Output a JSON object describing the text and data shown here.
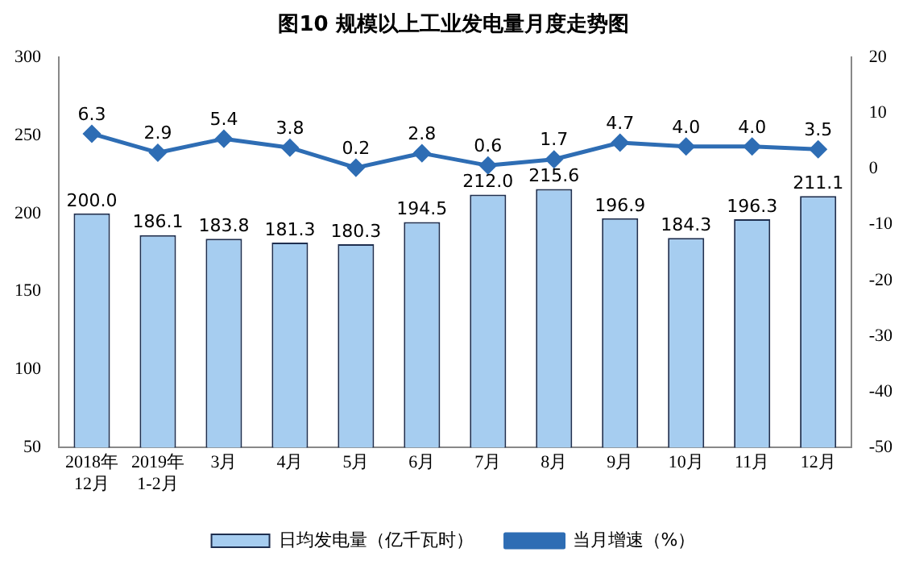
{
  "chart_data": {
    "type": "bar",
    "title": "图10  规模以上工业发电量月度走势图",
    "categories": [
      "2018年\n12月",
      "2019年\n1-2月",
      "3月",
      "4月",
      "5月",
      "6月",
      "7月",
      "8月",
      "9月",
      "10月",
      "11月",
      "12月"
    ],
    "series": [
      {
        "name": "日均发电量（亿千瓦时）",
        "color": "#a6cdf0",
        "values": [
          200.0,
          186.1,
          183.8,
          181.3,
          180.3,
          194.5,
          212.0,
          215.6,
          196.9,
          184.3,
          196.3,
          211.1
        ],
        "value_labels": [
          "200.0",
          "186.1",
          "183.8",
          "181.3",
          "180.3",
          "194.5",
          "212.0",
          "215.6",
          "196.9",
          "184.3",
          "196.3",
          "211.1"
        ]
      },
      {
        "name": "当月增速（%）",
        "type": "line",
        "axis": "y2",
        "color": "#2e6db4",
        "marker": "diamond",
        "values": [
          6.3,
          2.9,
          5.4,
          3.8,
          0.2,
          2.8,
          0.6,
          1.7,
          4.7,
          4.0,
          4.0,
          3.5
        ],
        "value_labels": [
          "6.3",
          "2.9",
          "5.4",
          "3.8",
          "0.2",
          "2.8",
          "0.6",
          "1.7",
          "4.7",
          "4.0",
          "4.0",
          "3.5"
        ]
      }
    ],
    "ylim": [
      50,
      300
    ],
    "yticks": [
      50,
      100,
      150,
      200,
      250,
      300
    ],
    "y2lim": [
      -50,
      20
    ],
    "y2ticks": [
      -50,
      -40,
      -30,
      -20,
      -10,
      0,
      10,
      20
    ],
    "grid": false,
    "legend": "bottom"
  }
}
